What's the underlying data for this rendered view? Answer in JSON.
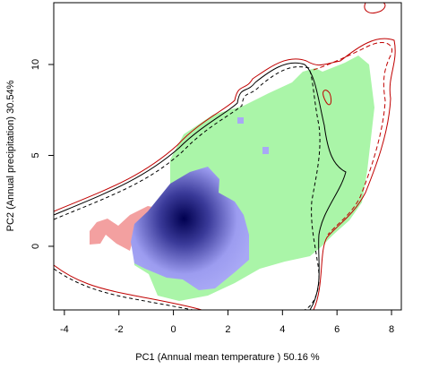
{
  "chart_data": {
    "type": "niche",
    "xlabel": "PC1 (Annual mean temperature ) 50.16 %",
    "ylabel": "PC2 (Annual precipitation) 30.54%",
    "xlim": [
      -4.39,
      8.36
    ],
    "ylim": [
      -3.5,
      13.4
    ],
    "xticks": [
      -4,
      -2,
      0,
      2,
      4,
      6,
      8
    ],
    "yticks": [
      0,
      5,
      10
    ]
  }
}
